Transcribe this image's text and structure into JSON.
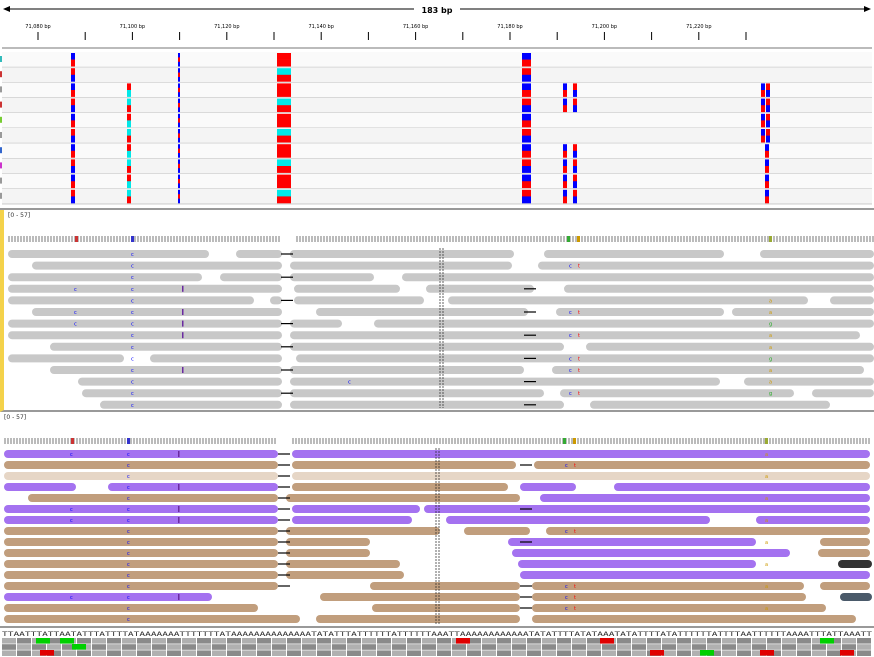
{
  "ruler": {
    "span_label": "183 bp",
    "ticks": [
      "71,080 bp",
      "71,090 bp",
      "71,100 bp",
      "71,110 bp",
      "71,120 bp",
      "71,130 bp",
      "71,140 bp",
      "71,150 bp",
      "71,160 bp",
      "71,170 bp",
      "71,180 bp",
      "71,190 bp",
      "71,200 bp",
      "71,210 bp",
      "71,220 bp",
      "71,230 bp"
    ],
    "labeled_tick_index": [
      0,
      2,
      4,
      6,
      8,
      10,
      12,
      14
    ]
  },
  "tracks": {
    "track1_range": "[0 - 57]",
    "track2_range": "[0 - 57]"
  },
  "colors": {
    "read_gray": "#c8c8c8",
    "read_purple": "#a472f0",
    "read_tan": "#c19e7d",
    "snv_red": "#ff0000",
    "snv_blue": "#0000ff",
    "snv_cyan": "#00e8e8",
    "seq_green": "#00d000",
    "seq_red": "#e00000"
  },
  "sequence": {
    "bases": "TTAATTTATTAATATTTATTTTATAAAAAAATTTTTTTATAAAAAAAAAAAAAATATATTTATTTTTTATTTTTTAAATTAAAAAAAAAAAATATATTTTATATAAATATATTTTATATTTTTTATTTTAATTTTTTAAAATTTATTAAATT"
  }
}
